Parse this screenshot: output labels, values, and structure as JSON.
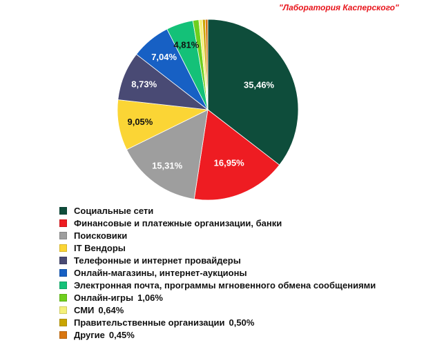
{
  "source_label": "\"Лаборатория Касперского\"",
  "chart_data": {
    "type": "pie",
    "start_angle_deg": 0,
    "direction": "clockwise",
    "slices": [
      {
        "label": "Социальные сети",
        "value": 35.46,
        "value_text": "35,46%",
        "color": "#0e4d3b",
        "label_color": "#ffffff",
        "label_on_pie": true,
        "legend_value_text": ""
      },
      {
        "label": "Финансовые и платежные организации, банки",
        "value": 16.95,
        "value_text": "16,95%",
        "color": "#ee1c22",
        "label_color": "#ffffff",
        "label_on_pie": true,
        "legend_value_text": ""
      },
      {
        "label": "Поисковики",
        "value": 15.31,
        "value_text": "15,31%",
        "color": "#9e9e9e",
        "label_color": "#ffffff",
        "label_on_pie": true,
        "legend_value_text": ""
      },
      {
        "label": "IT Вендоры",
        "value": 9.05,
        "value_text": "9,05%",
        "color": "#fbd535",
        "label_color": "#111111",
        "label_on_pie": true,
        "legend_value_text": ""
      },
      {
        "label": "Телефонные и интернет провайдеры",
        "value": 8.73,
        "value_text": "8,73%",
        "color": "#494a74",
        "label_color": "#ffffff",
        "label_on_pie": true,
        "legend_value_text": ""
      },
      {
        "label": "Онлайн-магазины, интернет-аукционы",
        "value": 7.04,
        "value_text": "7,04%",
        "color": "#1760c4",
        "label_color": "#ffffff",
        "label_on_pie": true,
        "legend_value_text": ""
      },
      {
        "label": "Электронная почта, программы мгновенного обмена сообщениями",
        "value": 4.81,
        "value_text": "4,81%",
        "color": "#14c178",
        "label_color": "#111111",
        "label_on_pie": true,
        "legend_value_text": ""
      },
      {
        "label": "Онлайн-игры",
        "value": 1.06,
        "value_text": "1,06%",
        "color": "#6fcf1e",
        "label_color": "#111111",
        "label_on_pie": false,
        "legend_value_text": "1,06%"
      },
      {
        "label": "СМИ",
        "value": 0.64,
        "value_text": "0,64%",
        "color": "#f4f07a",
        "label_color": "#111111",
        "label_on_pie": false,
        "legend_value_text": "0,64%"
      },
      {
        "label": "Правительственные организации",
        "value": 0.5,
        "value_text": "0,50%",
        "color": "#c9a500",
        "label_color": "#111111",
        "label_on_pie": false,
        "legend_value_text": "0,50%"
      },
      {
        "label": "Другие",
        "value": 0.45,
        "value_text": "0,45%",
        "color": "#d9760f",
        "label_color": "#111111",
        "label_on_pie": false,
        "legend_value_text": "0,45%"
      }
    ]
  }
}
